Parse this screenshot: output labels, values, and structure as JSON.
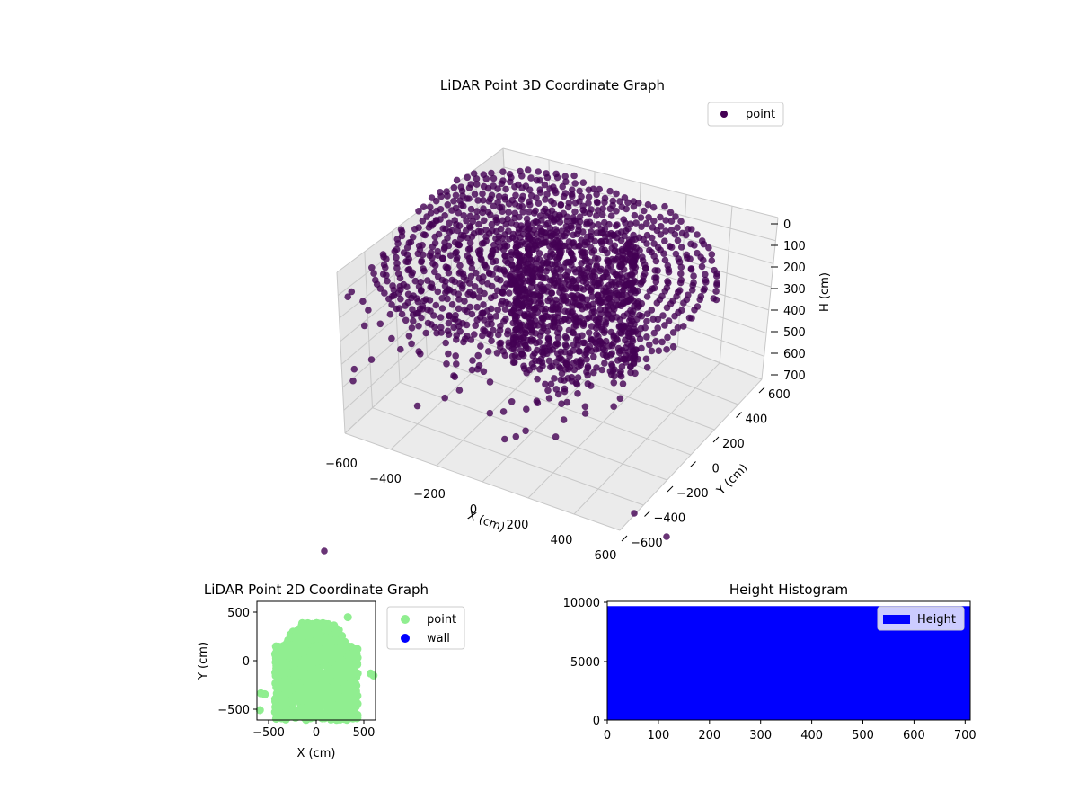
{
  "colors": {
    "point3d": "#440154",
    "point2d": "#90ee90",
    "wall": "#0000ff",
    "hist": "#0000ff",
    "pane_back": "#f2f2f2",
    "pane_side": "#e6e6e6",
    "pane_floor": "#ebebeb",
    "grid": "#c8c8c8"
  },
  "chart_data": [
    {
      "id": "lidar-3d",
      "type": "scatter",
      "title": "LiDAR Point 3D Coordinate Graph",
      "xlabel": "X (cm)",
      "ylabel": "Y (cm)",
      "zlabel": "H (cm)",
      "xlim": [
        -600,
        600
      ],
      "ylim": [
        -600,
        600
      ],
      "zlim": [
        0,
        700
      ],
      "z_inverted": true,
      "xticks": [
        "−600",
        "−400",
        "−200",
        "0",
        "200",
        "400",
        "600"
      ],
      "yticks": [
        "−600",
        "−400",
        "−200",
        "0",
        "200",
        "400",
        "600"
      ],
      "zticks": [
        "0",
        "100",
        "200",
        "300",
        "400",
        "500",
        "600",
        "700"
      ],
      "legend": {
        "entries": [
          "point"
        ],
        "position": "upper-right"
      },
      "grid": true
    },
    {
      "id": "lidar-2d",
      "type": "scatter",
      "title": "LiDAR Point 2D Coordinate Graph",
      "xlabel": "X (cm)",
      "ylabel": "Y (cm)",
      "xlim": [
        -600,
        600
      ],
      "ylim": [
        -600,
        600
      ],
      "xticks": [
        "−500",
        "0",
        "500"
      ],
      "yticks": [
        "500",
        "0",
        "−500"
      ],
      "series": [
        {
          "name": "point"
        },
        {
          "name": "wall"
        }
      ],
      "legend": {
        "entries": [
          "point",
          "wall"
        ],
        "position": "outside-right"
      },
      "grid": false
    },
    {
      "id": "height-hist",
      "type": "bar",
      "title": "Height Histogram",
      "xlim": [
        0,
        710
      ],
      "ylim": [
        0,
        10000
      ],
      "xticks": [
        "0",
        "100",
        "200",
        "300",
        "400",
        "500",
        "600",
        "700"
      ],
      "yticks": [
        "10000",
        "5000",
        "0"
      ],
      "series": [
        {
          "name": "Height",
          "bin_range": [
            0,
            710
          ],
          "value": 9600
        }
      ],
      "legend": {
        "entries": [
          "Height"
        ],
        "position": "upper-right"
      },
      "grid": false
    }
  ]
}
